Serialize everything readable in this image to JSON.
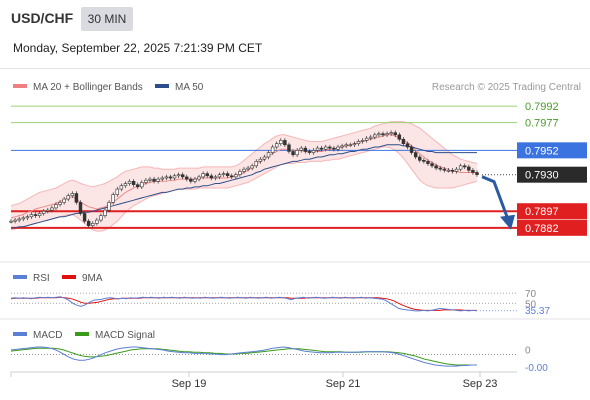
{
  "header": {
    "pair": "USD/CHF",
    "timeframe": "30 MIN",
    "datetime": "Monday, September 22, 2025 7:21:39 PM CET"
  },
  "main_legend": {
    "bollinger_label": "MA 20 + Bollinger Bands",
    "bollinger_color": "#f08080",
    "ma50_label": "MA 50",
    "ma50_color": "#2c4f8c",
    "credit": "Research © 2025 Trading Central"
  },
  "rsi_legend": {
    "rsi_label": "RSI",
    "rsi_color": "#5b7fd6",
    "ma_label": "9MA",
    "ma_color": "#e01010"
  },
  "macd_legend": {
    "macd_label": "MACD",
    "macd_color": "#5b7fd6",
    "signal_label": "MACD Signal",
    "signal_color": "#3a9a1a"
  },
  "chart_data": [
    {
      "type": "candlestick",
      "title": "USD/CHF 30 MIN",
      "ylim": [
        0.7871,
        0.8002
      ],
      "x_tick_labels": [
        "Sep 19",
        "Sep 21",
        "Sep 23"
      ],
      "close_series": [
        0.7888,
        0.7889,
        0.789,
        0.7891,
        0.7892,
        0.7894,
        0.7893,
        0.7895,
        0.7897,
        0.7898,
        0.79,
        0.7903,
        0.7905,
        0.7908,
        0.7911,
        0.7913,
        0.7905,
        0.7895,
        0.7888,
        0.7884,
        0.7886,
        0.7889,
        0.7893,
        0.7898,
        0.7905,
        0.7912,
        0.7917,
        0.792,
        0.7922,
        0.7924,
        0.7921,
        0.7919,
        0.7923,
        0.7925,
        0.7926,
        0.7924,
        0.7926,
        0.7927,
        0.7928,
        0.7927,
        0.7929,
        0.793,
        0.7928,
        0.7926,
        0.7924,
        0.7926,
        0.7928,
        0.7931,
        0.7929,
        0.7927,
        0.7928,
        0.793,
        0.7931,
        0.7929,
        0.7928,
        0.793,
        0.7933,
        0.7935,
        0.7936,
        0.7938,
        0.7942,
        0.7944,
        0.7946,
        0.795,
        0.7955,
        0.7958,
        0.7961,
        0.7957,
        0.7951,
        0.7948,
        0.7952,
        0.7954,
        0.7951,
        0.795,
        0.7952,
        0.7954,
        0.7953,
        0.7955,
        0.7954,
        0.7953,
        0.7955,
        0.7956,
        0.7957,
        0.7957,
        0.7958,
        0.796,
        0.7961,
        0.7963,
        0.7964,
        0.7966,
        0.7967,
        0.7966,
        0.7967,
        0.7968,
        0.7966,
        0.7962,
        0.7958,
        0.7955,
        0.795,
        0.7946,
        0.7943,
        0.7942,
        0.794,
        0.7938,
        0.7936,
        0.7935,
        0.7934,
        0.7934,
        0.7933,
        0.7935,
        0.7938,
        0.7937,
        0.7934,
        0.7932,
        0.793
      ],
      "bollinger_upper": [
        0.7902,
        0.7903,
        0.7904,
        0.7906,
        0.7908,
        0.791,
        0.7912,
        0.7914,
        0.7915,
        0.7916,
        0.7917,
        0.7918,
        0.792,
        0.7922,
        0.7924,
        0.7925,
        0.7924,
        0.7922,
        0.7921,
        0.792,
        0.7919,
        0.792,
        0.7921,
        0.7922,
        0.7924,
        0.7926,
        0.7928,
        0.7931,
        0.7933,
        0.7934,
        0.7935,
        0.7936,
        0.7937,
        0.7937,
        0.7937,
        0.7936,
        0.7936,
        0.7935,
        0.7935,
        0.7935,
        0.7935,
        0.7936,
        0.7936,
        0.7936,
        0.7936,
        0.7936,
        0.7936,
        0.7937,
        0.7937,
        0.7937,
        0.7937,
        0.7937,
        0.7937,
        0.7937,
        0.7937,
        0.7938,
        0.794,
        0.7943,
        0.7946,
        0.7949,
        0.7952,
        0.7955,
        0.7958,
        0.796,
        0.7963,
        0.7965,
        0.7966,
        0.7966,
        0.7965,
        0.7964,
        0.7963,
        0.7962,
        0.7961,
        0.796,
        0.796,
        0.796,
        0.796,
        0.7961,
        0.7962,
        0.7963,
        0.7964,
        0.7965,
        0.7966,
        0.7967,
        0.7968,
        0.7969,
        0.797,
        0.7971,
        0.7972,
        0.7974,
        0.7975,
        0.7976,
        0.7977,
        0.7978,
        0.7978,
        0.7978,
        0.7978,
        0.7977,
        0.7976,
        0.7974,
        0.7972,
        0.7969,
        0.7966,
        0.7963,
        0.796,
        0.7957,
        0.7954,
        0.7951,
        0.7948,
        0.7946,
        0.7944,
        0.7943,
        0.7942,
        0.7941,
        0.794
      ],
      "bollinger_lower": [
        0.788,
        0.7881,
        0.7882,
        0.7883,
        0.7884,
        0.7885,
        0.7886,
        0.7887,
        0.7888,
        0.7889,
        0.789,
        0.7891,
        0.7892,
        0.7893,
        0.7894,
        0.7894,
        0.7892,
        0.7889,
        0.7886,
        0.7883,
        0.788,
        0.7879,
        0.7879,
        0.788,
        0.7882,
        0.7885,
        0.7888,
        0.7892,
        0.7896,
        0.7899,
        0.7902,
        0.7904,
        0.7906,
        0.7908,
        0.791,
        0.7911,
        0.7912,
        0.7913,
        0.7914,
        0.7915,
        0.7916,
        0.7917,
        0.7917,
        0.7917,
        0.7917,
        0.7917,
        0.7918,
        0.7918,
        0.7918,
        0.7918,
        0.7918,
        0.7918,
        0.7918,
        0.7918,
        0.7919,
        0.792,
        0.7921,
        0.7922,
        0.7923,
        0.7925,
        0.7927,
        0.7929,
        0.7931,
        0.7933,
        0.7935,
        0.7937,
        0.7939,
        0.794,
        0.794,
        0.794,
        0.7941,
        0.7941,
        0.7941,
        0.7942,
        0.7942,
        0.7942,
        0.7942,
        0.7943,
        0.7943,
        0.7944,
        0.7944,
        0.7945,
        0.7946,
        0.7947,
        0.7948,
        0.7949,
        0.795,
        0.7951,
        0.7952,
        0.7953,
        0.7954,
        0.7955,
        0.7955,
        0.7954,
        0.7952,
        0.7949,
        0.7945,
        0.794,
        0.7935,
        0.793,
        0.7925,
        0.7922,
        0.792,
        0.7919,
        0.7918,
        0.7918,
        0.7918,
        0.7918,
        0.7918,
        0.7919,
        0.792,
        0.7921,
        0.7922,
        0.7923,
        0.7924
      ],
      "ma20": [
        0.7891,
        0.7892,
        0.7893,
        0.7894,
        0.7896,
        0.7897,
        0.7899,
        0.79,
        0.7901,
        0.7902,
        0.7903,
        0.7904,
        0.7906,
        0.7907,
        0.7909,
        0.791,
        0.7908,
        0.7905,
        0.7903,
        0.7901,
        0.79,
        0.7899,
        0.79,
        0.7901,
        0.7903,
        0.7905,
        0.7908,
        0.7911,
        0.7914,
        0.7916,
        0.7918,
        0.792,
        0.7921,
        0.7922,
        0.7923,
        0.7924,
        0.7924,
        0.7924,
        0.7924,
        0.7925,
        0.7925,
        0.7926,
        0.7926,
        0.7926,
        0.7926,
        0.7926,
        0.7927,
        0.7927,
        0.7927,
        0.7927,
        0.7927,
        0.7927,
        0.7927,
        0.7927,
        0.7928,
        0.7929,
        0.793,
        0.7932,
        0.7934,
        0.7937,
        0.7939,
        0.7942,
        0.7944,
        0.7947,
        0.7949,
        0.7951,
        0.7953,
        0.7953,
        0.7953,
        0.7952,
        0.7952,
        0.7952,
        0.7951,
        0.7951,
        0.7951,
        0.7951,
        0.7951,
        0.7952,
        0.7953,
        0.7953,
        0.7954,
        0.7955,
        0.7956,
        0.7957,
        0.7958,
        0.7959,
        0.796,
        0.7961,
        0.7962,
        0.7963,
        0.7964,
        0.7965,
        0.7966,
        0.7966,
        0.7965,
        0.7963,
        0.7961,
        0.7959,
        0.7956,
        0.7952,
        0.7949,
        0.7946,
        0.7943,
        0.7941,
        0.7939,
        0.7937,
        0.7936,
        0.7935,
        0.7933,
        0.7933,
        0.7932,
        0.7932,
        0.7932,
        0.7932,
        0.7932
      ],
      "ma50": [
        0.7882,
        0.7882,
        0.7883,
        0.7883,
        0.7884,
        0.7885,
        0.7886,
        0.7887,
        0.7888,
        0.7889,
        0.789,
        0.7891,
        0.7892,
        0.7892,
        0.7893,
        0.7894,
        0.7895,
        0.7895,
        0.7896,
        0.7896,
        0.7897,
        0.7898,
        0.7899,
        0.79,
        0.7901,
        0.7902,
        0.7903,
        0.7904,
        0.7905,
        0.7906,
        0.7907,
        0.7908,
        0.7909,
        0.791,
        0.7911,
        0.7912,
        0.7913,
        0.7914,
        0.7914,
        0.7915,
        0.7916,
        0.7917,
        0.7917,
        0.7918,
        0.7918,
        0.7919,
        0.7919,
        0.792,
        0.792,
        0.7921,
        0.7922,
        0.7922,
        0.7923,
        0.7924,
        0.7925,
        0.7926,
        0.7927,
        0.7928,
        0.7929,
        0.793,
        0.7932,
        0.7933,
        0.7935,
        0.7936,
        0.7937,
        0.7938,
        0.7939,
        0.794,
        0.7941,
        0.7942,
        0.7942,
        0.7943,
        0.7944,
        0.7944,
        0.7945,
        0.7946,
        0.7946,
        0.7947,
        0.7948,
        0.7948,
        0.7949,
        0.7949,
        0.795,
        0.7951,
        0.7951,
        0.7952,
        0.7953,
        0.7953,
        0.7954,
        0.7955,
        0.7955,
        0.7956,
        0.7957,
        0.7957,
        0.7957,
        0.7957,
        0.7956,
        0.7956,
        0.7955,
        0.7954,
        0.7953,
        0.7952,
        0.7951,
        0.7951,
        0.795,
        0.795,
        0.795,
        0.795,
        0.795,
        0.795,
        0.795,
        0.795,
        0.795,
        0.795,
        0.795
      ],
      "levels": [
        {
          "value": 0.7992,
          "label": "0.7992",
          "kind": "resistance",
          "color": "#9bd272"
        },
        {
          "value": 0.7977,
          "label": "0.7977",
          "kind": "resistance",
          "color": "#9bd272"
        },
        {
          "value": 0.7952,
          "label": "0.7952",
          "kind": "pivot",
          "color": "#3b73e0"
        },
        {
          "value": 0.793,
          "label": "0.7930",
          "kind": "last-price",
          "color": "#2a2a2a"
        },
        {
          "value": 0.7897,
          "label": "0.7897",
          "kind": "support",
          "color": "#e02020"
        },
        {
          "value": 0.7882,
          "label": "0.7882",
          "kind": "support",
          "color": "#e02020"
        }
      ],
      "forecast_arrow": {
        "from": 0.793,
        "to": 0.7892,
        "color": "#2c5aa0"
      }
    },
    {
      "type": "line",
      "title": "RSI",
      "ylim": [
        25,
        80
      ],
      "levels": [
        {
          "value": 70,
          "label": "70"
        },
        {
          "value": 50,
          "label": "50"
        }
      ],
      "current_label": "35.37",
      "rsi": [
        60,
        61,
        60,
        61,
        60,
        59,
        61,
        62,
        61,
        62,
        61,
        62,
        63,
        60,
        56,
        50,
        46,
        44,
        47,
        52,
        56,
        57,
        58,
        60,
        61,
        60,
        59,
        60,
        59,
        61,
        60,
        61,
        62,
        61,
        62,
        61,
        60,
        62,
        61,
        62,
        61,
        60,
        62,
        61,
        60,
        61,
        60,
        62,
        61,
        60,
        61,
        62,
        61,
        60,
        61,
        62,
        61,
        60,
        62,
        61,
        60,
        61,
        62,
        60,
        61,
        62,
        61,
        59,
        57,
        60,
        61,
        62,
        60,
        61,
        62,
        61,
        60,
        61,
        62,
        61,
        60,
        62,
        61,
        60,
        61,
        62,
        60,
        61,
        60,
        59,
        58,
        55,
        50,
        45,
        40,
        38,
        37,
        36,
        35,
        35,
        36,
        35,
        36,
        38,
        40,
        39,
        38,
        37,
        36,
        35,
        36,
        35,
        36,
        35.37
      ],
      "ma9": [
        59,
        60,
        60,
        60,
        60,
        60,
        60,
        61,
        61,
        61,
        61,
        61,
        62,
        61,
        60,
        58,
        55,
        52,
        50,
        50,
        51,
        52,
        54,
        56,
        58,
        59,
        59,
        60,
        60,
        60,
        60,
        60,
        61,
        61,
        61,
        61,
        61,
        61,
        61,
        61,
        61,
        61,
        61,
        61,
        61,
        61,
        61,
        61,
        61,
        61,
        61,
        61,
        61,
        61,
        61,
        61,
        61,
        61,
        61,
        61,
        61,
        61,
        61,
        61,
        61,
        61,
        61,
        61,
        60,
        60,
        60,
        60,
        61,
        61,
        61,
        61,
        61,
        61,
        61,
        61,
        61,
        61,
        61,
        61,
        61,
        61,
        61,
        61,
        61,
        61,
        60,
        59,
        57,
        54,
        50,
        46,
        43,
        40,
        38,
        37,
        36,
        36,
        36,
        36,
        36,
        37,
        37,
        37,
        37,
        37,
        36,
        36,
        36,
        36
      ]
    },
    {
      "type": "line",
      "title": "MACD",
      "ylim": [
        -0.0025,
        0.002
      ],
      "levels": [
        {
          "value": 0,
          "label": "0"
        }
      ],
      "current_label": "-0.00",
      "macd": [
        0.0008,
        0.0009,
        0.001,
        0.0011,
        0.0012,
        0.0013,
        0.0013,
        0.0012,
        0.001,
        0.0006,
        0.0001,
        -0.0004,
        -0.0008,
        -0.001,
        -0.001,
        -0.0008,
        -0.0005,
        -0.0001,
        0.0003,
        0.0006,
        0.0009,
        0.0011,
        0.0012,
        0.0013,
        0.0013,
        0.0012,
        0.0011,
        0.001,
        0.0009,
        0.0008,
        0.0006,
        0.0005,
        0.0004,
        0.0003,
        0.0003,
        0.0002,
        0.0002,
        0.0002,
        0.0001,
        0.0001,
        0.0,
        0.0,
        0.0001,
        0.0002,
        0.0003,
        0.0004,
        0.0005,
        0.0006,
        0.0007,
        0.0009,
        0.0011,
        0.0012,
        0.0013,
        0.0012,
        0.001,
        0.0008,
        0.0006,
        0.0005,
        0.0004,
        0.0003,
        0.0003,
        0.0003,
        0.0004,
        0.0004,
        0.0004,
        0.0004,
        0.0004,
        0.0005,
        0.0005,
        0.0005,
        0.0005,
        0.0005,
        0.0004,
        0.0003,
        0.0001,
        -0.0002,
        -0.0005,
        -0.0008,
        -0.0011,
        -0.0014,
        -0.0016,
        -0.0018,
        -0.0019,
        -0.002,
        -0.002,
        -0.002,
        -0.0019,
        -0.0019,
        -0.0018,
        -0.0018
      ],
      "signal": [
        0.0006,
        0.0007,
        0.0008,
        0.0009,
        0.001,
        0.0011,
        0.0011,
        0.0011,
        0.0011,
        0.001,
        0.0008,
        0.0005,
        0.0002,
        -0.0001,
        -0.0003,
        -0.0004,
        -0.0004,
        -0.0003,
        -0.0002,
        0.0,
        0.0002,
        0.0004,
        0.0006,
        0.0008,
        0.0009,
        0.001,
        0.001,
        0.001,
        0.001,
        0.0009,
        0.0008,
        0.0007,
        0.0006,
        0.0005,
        0.0005,
        0.0004,
        0.0004,
        0.0003,
        0.0003,
        0.0002,
        0.0002,
        0.0001,
        0.0001,
        0.0001,
        0.0002,
        0.0002,
        0.0003,
        0.0004,
        0.0005,
        0.0006,
        0.0007,
        0.0008,
        0.0009,
        0.001,
        0.001,
        0.001,
        0.0009,
        0.0008,
        0.0007,
        0.0006,
        0.0005,
        0.0005,
        0.0005,
        0.0005,
        0.0004,
        0.0004,
        0.0004,
        0.0004,
        0.0005,
        0.0005,
        0.0005,
        0.0005,
        0.0005,
        0.0004,
        0.0003,
        0.0002,
        0.0,
        -0.0002,
        -0.0005,
        -0.0008,
        -0.001,
        -0.0012,
        -0.0014,
        -0.0016,
        -0.0017,
        -0.0018,
        -0.0018,
        -0.0018,
        -0.0018,
        -0.0018
      ]
    }
  ]
}
